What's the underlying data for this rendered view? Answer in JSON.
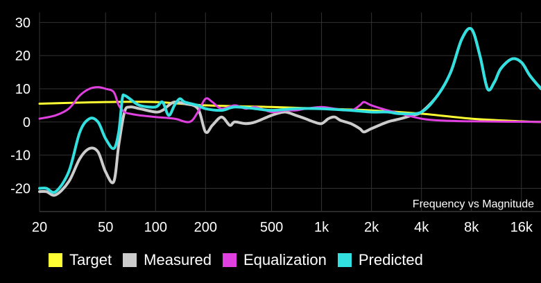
{
  "chart_data": {
    "type": "line",
    "title": "Frequency vs Magnitude",
    "xscale": "log",
    "xlim": [
      20,
      21000
    ],
    "ylim": [
      -27,
      33
    ],
    "x_ticks": [
      {
        "value": 20,
        "label": "20"
      },
      {
        "value": 50,
        "label": "50"
      },
      {
        "value": 100,
        "label": "100"
      },
      {
        "value": 200,
        "label": "200"
      },
      {
        "value": 500,
        "label": "500"
      },
      {
        "value": 1000,
        "label": "1k"
      },
      {
        "value": 2000,
        "label": "2k"
      },
      {
        "value": 4000,
        "label": "4k"
      },
      {
        "value": 8000,
        "label": "8k"
      },
      {
        "value": 16000,
        "label": "16k"
      }
    ],
    "y_ticks": [
      {
        "value": 30,
        "label": "30"
      },
      {
        "value": 20,
        "label": "20"
      },
      {
        "value": 10,
        "label": "10"
      },
      {
        "value": 0,
        "label": "0"
      },
      {
        "value": -10,
        "label": "-10"
      },
      {
        "value": -20,
        "label": "-20"
      }
    ],
    "grid": true,
    "legend_position": "bottom",
    "series": [
      {
        "name": "Target",
        "color": "#ffff33",
        "points": [
          [
            20,
            5.5
          ],
          [
            50,
            6
          ],
          [
            100,
            6
          ],
          [
            200,
            5
          ],
          [
            500,
            4.5
          ],
          [
            1000,
            4
          ],
          [
            2000,
            3.5
          ],
          [
            4000,
            2.5
          ],
          [
            8000,
            1
          ],
          [
            16000,
            0.2
          ],
          [
            21000,
            0
          ]
        ]
      },
      {
        "name": "Measured",
        "color": "#cccccc",
        "points": [
          [
            20,
            -21
          ],
          [
            22,
            -21
          ],
          [
            25,
            -22
          ],
          [
            30,
            -18
          ],
          [
            35,
            -11
          ],
          [
            40,
            -8
          ],
          [
            45,
            -9
          ],
          [
            50,
            -15
          ],
          [
            56,
            -18
          ],
          [
            60,
            -7
          ],
          [
            65,
            3
          ],
          [
            70,
            4.5
          ],
          [
            80,
            4
          ],
          [
            100,
            3
          ],
          [
            110,
            3.5
          ],
          [
            120,
            5
          ],
          [
            130,
            6
          ],
          [
            150,
            5.5
          ],
          [
            180,
            4
          ],
          [
            200,
            -3
          ],
          [
            220,
            -1
          ],
          [
            250,
            1.5
          ],
          [
            280,
            -1
          ],
          [
            300,
            0
          ],
          [
            350,
            -0.5
          ],
          [
            400,
            0
          ],
          [
            500,
            2
          ],
          [
            600,
            3
          ],
          [
            700,
            2
          ],
          [
            800,
            1
          ],
          [
            900,
            0
          ],
          [
            1000,
            -0.5
          ],
          [
            1100,
            1
          ],
          [
            1200,
            1.5
          ],
          [
            1300,
            0.5
          ],
          [
            1500,
            -0.5
          ],
          [
            1700,
            -2
          ],
          [
            1800,
            -3
          ],
          [
            2000,
            -2
          ],
          [
            2500,
            0
          ],
          [
            3000,
            1
          ],
          [
            3500,
            2
          ],
          [
            4000,
            3
          ],
          [
            5000,
            8
          ],
          [
            6000,
            15
          ],
          [
            7000,
            25
          ],
          [
            8000,
            28
          ],
          [
            9000,
            20
          ],
          [
            10000,
            10
          ],
          [
            11000,
            12
          ],
          [
            12000,
            16
          ],
          [
            14000,
            19
          ],
          [
            16000,
            18
          ],
          [
            18000,
            14
          ],
          [
            21000,
            10
          ]
        ]
      },
      {
        "name": "Equalization",
        "color": "#e040e0",
        "points": [
          [
            20,
            1
          ],
          [
            25,
            2
          ],
          [
            30,
            4
          ],
          [
            35,
            8
          ],
          [
            40,
            10
          ],
          [
            45,
            10.5
          ],
          [
            50,
            10
          ],
          [
            56,
            9
          ],
          [
            60,
            5
          ],
          [
            65,
            3
          ],
          [
            70,
            2.5
          ],
          [
            80,
            2
          ],
          [
            100,
            1.5
          ],
          [
            130,
            1
          ],
          [
            160,
            0
          ],
          [
            180,
            3
          ],
          [
            200,
            7
          ],
          [
            220,
            6
          ],
          [
            250,
            4
          ],
          [
            300,
            5
          ],
          [
            350,
            4
          ],
          [
            400,
            4.5
          ],
          [
            500,
            3
          ],
          [
            600,
            3.5
          ],
          [
            700,
            3.5
          ],
          [
            800,
            4
          ],
          [
            1000,
            4.5
          ],
          [
            1200,
            4
          ],
          [
            1500,
            3.5
          ],
          [
            1700,
            5
          ],
          [
            1800,
            6
          ],
          [
            2000,
            5
          ],
          [
            2500,
            3.5
          ],
          [
            3000,
            2.5
          ],
          [
            4000,
            1
          ],
          [
            5000,
            0.5
          ],
          [
            8000,
            0.2
          ],
          [
            21000,
            0
          ]
        ]
      },
      {
        "name": "Predicted",
        "color": "#33e0e0",
        "points": [
          [
            20,
            -20
          ],
          [
            22,
            -20
          ],
          [
            25,
            -21
          ],
          [
            30,
            -15
          ],
          [
            35,
            -3
          ],
          [
            40,
            1
          ],
          [
            45,
            0
          ],
          [
            50,
            -5
          ],
          [
            56,
            -8
          ],
          [
            60,
            -3
          ],
          [
            63,
            7
          ],
          [
            65,
            8
          ],
          [
            70,
            7
          ],
          [
            80,
            5
          ],
          [
            100,
            4.5
          ],
          [
            110,
            6
          ],
          [
            120,
            2
          ],
          [
            130,
            5
          ],
          [
            140,
            7
          ],
          [
            150,
            6
          ],
          [
            180,
            5
          ],
          [
            200,
            4
          ],
          [
            250,
            3.5
          ],
          [
            300,
            4.5
          ],
          [
            400,
            4
          ],
          [
            500,
            3.5
          ],
          [
            700,
            4
          ],
          [
            1000,
            4
          ],
          [
            1500,
            3.5
          ],
          [
            2000,
            3
          ],
          [
            2500,
            3
          ],
          [
            3000,
            2.5
          ],
          [
            4000,
            3
          ],
          [
            5000,
            8
          ],
          [
            6000,
            15
          ],
          [
            7000,
            25
          ],
          [
            8000,
            28
          ],
          [
            9000,
            20
          ],
          [
            10000,
            10
          ],
          [
            11000,
            12
          ],
          [
            12000,
            16
          ],
          [
            14000,
            19
          ],
          [
            16000,
            18
          ],
          [
            18000,
            14
          ],
          [
            21000,
            10
          ]
        ]
      }
    ]
  }
}
